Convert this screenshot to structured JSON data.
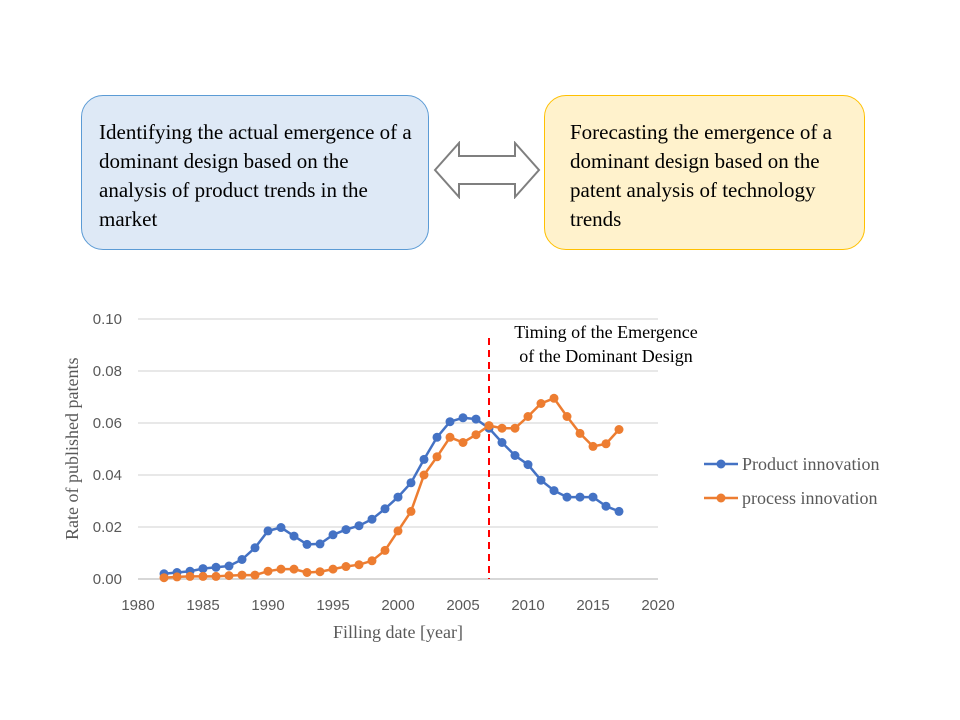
{
  "boxes": {
    "left": "Identifying the actual emergence of a dominant design based on the analysis of product trends in the market",
    "right": "Forecasting the emergence of a dominant design based on the patent analysis of technology trends"
  },
  "colors": {
    "product": "#4472c4",
    "process": "#ed7d31",
    "marker_line": "#ff0000"
  },
  "chart_data": {
    "type": "line",
    "xlabel": "Filling date [year]",
    "ylabel": "Rate of published patents",
    "xlim": [
      1980,
      2020
    ],
    "ylim": [
      0,
      0.1
    ],
    "xticks": [
      "1980",
      "1985",
      "1990",
      "1995",
      "2000",
      "2005",
      "2010",
      "2015",
      "2020"
    ],
    "yticks": [
      "0.00",
      "0.02",
      "0.04",
      "0.06",
      "0.08",
      "0.10"
    ],
    "grid": true,
    "legend_position": "right",
    "annotation": {
      "x": 2007,
      "line1": "Timing of the Emergence",
      "line2": "of the Dominant Design"
    },
    "x": [
      1982,
      1983,
      1984,
      1985,
      1986,
      1987,
      1988,
      1989,
      1990,
      1991,
      1992,
      1993,
      1994,
      1995,
      1996,
      1997,
      1998,
      1999,
      2000,
      2001,
      2002,
      2003,
      2004,
      2005,
      2006,
      2007,
      2008,
      2009,
      2010,
      2011,
      2012,
      2013,
      2014,
      2015,
      2016,
      2017
    ],
    "series": [
      {
        "name": "Product innovation",
        "values": [
          0.002,
          0.0025,
          0.003,
          0.004,
          0.0045,
          0.005,
          0.0075,
          0.012,
          0.0185,
          0.0198,
          0.0165,
          0.0133,
          0.0135,
          0.017,
          0.019,
          0.0205,
          0.023,
          0.027,
          0.0315,
          0.037,
          0.046,
          0.0545,
          0.0605,
          0.062,
          0.0615,
          0.058,
          0.0525,
          0.0475,
          0.044,
          0.038,
          0.034,
          0.0315,
          0.0315,
          0.0315,
          0.028,
          0.026
        ]
      },
      {
        "name": "process innovation",
        "values": [
          0.0005,
          0.0008,
          0.001,
          0.001,
          0.001,
          0.0013,
          0.0015,
          0.0015,
          0.003,
          0.0038,
          0.0038,
          0.0025,
          0.0028,
          0.0038,
          0.0048,
          0.0055,
          0.007,
          0.011,
          0.0185,
          0.026,
          0.04,
          0.047,
          0.0545,
          0.0525,
          0.0555,
          0.059,
          0.058,
          0.058,
          0.0625,
          0.0675,
          0.0695,
          0.0625,
          0.056,
          0.051,
          0.052,
          0.0575
        ]
      }
    ]
  }
}
